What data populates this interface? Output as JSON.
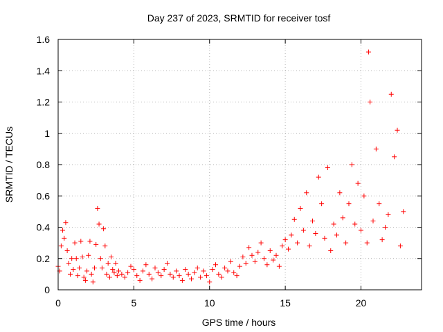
{
  "chart_data": {
    "type": "scatter",
    "title": "Day 237 of 2023, SRMTID for receiver tosf",
    "xlabel": "GPS time / hours",
    "ylabel": "SRMTID / TECUs",
    "xlim": [
      0,
      24
    ],
    "ylim": [
      0,
      1.6
    ],
    "xticks": [
      0,
      5,
      10,
      15,
      20
    ],
    "xtick_labels": [
      "0",
      "5",
      "10",
      "15",
      "20"
    ],
    "yticks": [
      0,
      0.2,
      0.4,
      0.6,
      0.8,
      1.0,
      1.2,
      1.4,
      1.6
    ],
    "ytick_labels": [
      "0",
      "0.2",
      "0.4",
      "0.6",
      "0.8",
      "1",
      "1.2",
      "1.4",
      "1.6"
    ],
    "grid": true,
    "marker": "+",
    "series_color": "#ff0000",
    "series": [
      {
        "name": "tosf",
        "x": [
          0.0,
          0.1,
          0.2,
          0.3,
          0.4,
          0.5,
          0.6,
          0.7,
          0.8,
          0.9,
          1.0,
          1.1,
          1.2,
          1.3,
          1.4,
          1.5,
          1.6,
          1.7,
          1.8,
          1.9,
          2.0,
          2.1,
          2.2,
          2.3,
          2.4,
          2.5,
          2.6,
          2.7,
          2.8,
          2.9,
          3.0,
          3.1,
          3.2,
          3.3,
          3.4,
          3.5,
          3.6,
          3.7,
          3.8,
          3.9,
          4.0,
          4.2,
          4.4,
          4.6,
          4.8,
          5.0,
          5.2,
          5.4,
          5.6,
          5.8,
          6.0,
          6.2,
          6.4,
          6.6,
          6.8,
          7.0,
          7.2,
          7.4,
          7.6,
          7.8,
          8.0,
          8.2,
          8.4,
          8.6,
          8.8,
          9.0,
          9.2,
          9.4,
          9.6,
          9.8,
          10.0,
          10.2,
          10.4,
          10.6,
          10.8,
          11.0,
          11.2,
          11.4,
          11.6,
          11.8,
          12.0,
          12.2,
          12.4,
          12.6,
          12.8,
          13.0,
          13.2,
          13.4,
          13.6,
          13.8,
          14.0,
          14.2,
          14.4,
          14.6,
          14.8,
          15.0,
          15.2,
          15.4,
          15.6,
          15.8,
          16.0,
          16.2,
          16.4,
          16.6,
          16.8,
          17.0,
          17.2,
          17.4,
          17.6,
          17.8,
          18.0,
          18.2,
          18.4,
          18.6,
          18.8,
          19.0,
          19.2,
          19.4,
          19.6,
          19.8,
          20.0,
          20.2,
          20.4,
          20.5,
          20.6,
          20.8,
          21.0,
          21.2,
          21.4,
          21.6,
          21.8,
          22.0,
          22.2,
          22.4,
          22.6,
          22.8
        ],
        "y": [
          0.15,
          0.12,
          0.28,
          0.38,
          0.33,
          0.43,
          0.25,
          0.17,
          0.1,
          0.2,
          0.13,
          0.3,
          0.2,
          0.09,
          0.14,
          0.31,
          0.21,
          0.08,
          0.06,
          0.12,
          0.22,
          0.31,
          0.1,
          0.05,
          0.14,
          0.29,
          0.52,
          0.42,
          0.2,
          0.14,
          0.39,
          0.28,
          0.1,
          0.17,
          0.08,
          0.21,
          0.13,
          0.11,
          0.17,
          0.09,
          0.12,
          0.1,
          0.08,
          0.11,
          0.15,
          0.13,
          0.09,
          0.06,
          0.12,
          0.16,
          0.1,
          0.07,
          0.14,
          0.11,
          0.09,
          0.13,
          0.17,
          0.1,
          0.08,
          0.12,
          0.09,
          0.06,
          0.13,
          0.1,
          0.07,
          0.11,
          0.14,
          0.08,
          0.12,
          0.09,
          0.05,
          0.13,
          0.16,
          0.1,
          0.08,
          0.14,
          0.12,
          0.18,
          0.11,
          0.09,
          0.15,
          0.21,
          0.17,
          0.27,
          0.22,
          0.18,
          0.24,
          0.3,
          0.2,
          0.16,
          0.25,
          0.19,
          0.22,
          0.15,
          0.28,
          0.32,
          0.26,
          0.35,
          0.45,
          0.3,
          0.52,
          0.38,
          0.62,
          0.28,
          0.44,
          0.36,
          0.72,
          0.55,
          0.33,
          0.78,
          0.25,
          0.42,
          0.35,
          0.62,
          0.46,
          0.3,
          0.55,
          0.8,
          0.42,
          0.68,
          0.38,
          0.6,
          0.3,
          1.52,
          1.2,
          0.44,
          0.9,
          0.55,
          0.32,
          0.4,
          0.48,
          1.25,
          0.85,
          1.02,
          0.28,
          0.5
        ]
      }
    ]
  }
}
